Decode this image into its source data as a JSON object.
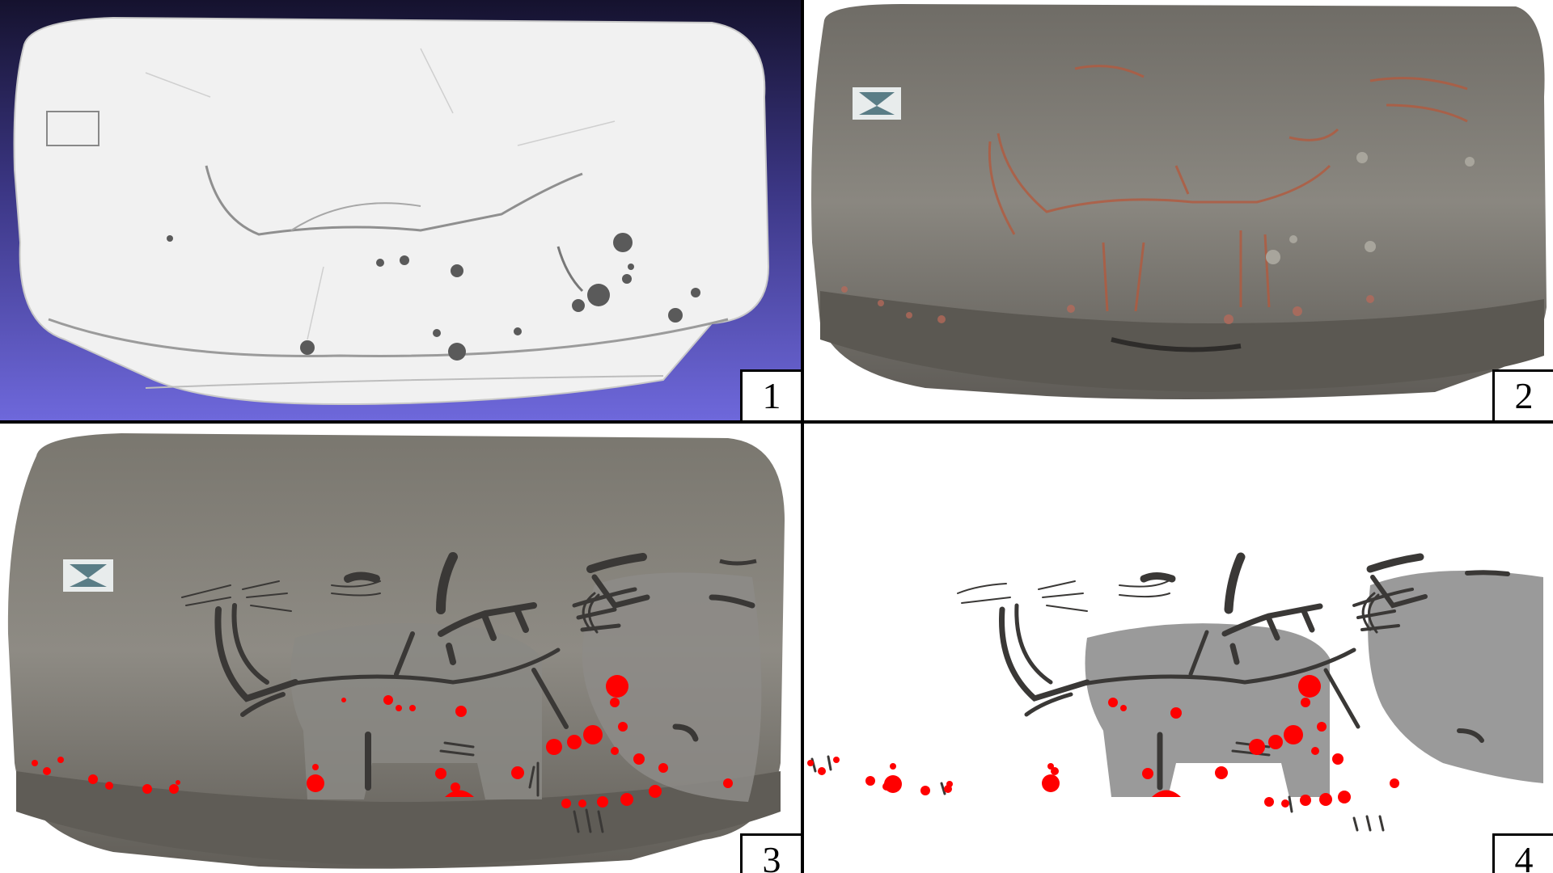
{
  "panels": [
    {
      "number": "1",
      "render": "3d-mesh"
    },
    {
      "number": "2",
      "render": "photo"
    },
    {
      "number": "3",
      "render": "photo-with-tracing"
    },
    {
      "number": "4",
      "render": "tracing"
    }
  ],
  "colors": {
    "mesh_background_top": "#15122e",
    "mesh_background_bottom": "#6e68db",
    "mesh_surface": "#f1f1f1",
    "rock": "#7d7a72",
    "ochre_lines": "#b35a3e",
    "tracing_black": "#3a3836",
    "tracing_gray": "#9a9a9a",
    "red_dots": "#ff0000"
  }
}
